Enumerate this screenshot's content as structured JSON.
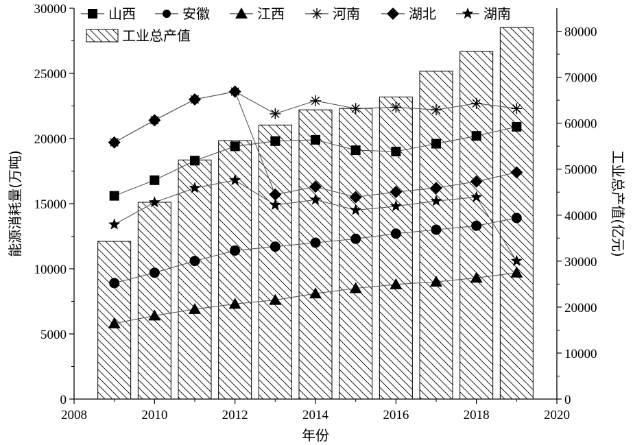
{
  "chart_data": {
    "type": "bar+line",
    "xlabel": "年份",
    "ylabel_left": "能源消耗量(万吨)",
    "ylabel_right": "工业总产值(亿元)",
    "xlim": [
      2008,
      2020
    ],
    "xticks": [
      "2008",
      "2010",
      "2012",
      "2014",
      "2016",
      "2018",
      "2020"
    ],
    "ylim_left": [
      0,
      30000
    ],
    "yticks_left": [
      "0",
      "5000",
      "10000",
      "15000",
      "20000",
      "25000",
      "30000"
    ],
    "ylim_right": [
      0,
      85000
    ],
    "yticks_right": [
      "0",
      "10000",
      "20000",
      "30000",
      "40000",
      "50000",
      "60000",
      "70000",
      "80000"
    ],
    "grid": false,
    "legend_position": "top",
    "years": [
      2009,
      2010,
      2011,
      2012,
      2013,
      2014,
      2015,
      2016,
      2017,
      2018,
      2019
    ],
    "bars": {
      "name": "工业总产值",
      "axis": "right",
      "values": [
        34300,
        42800,
        52000,
        56200,
        59600,
        62900,
        63200,
        65700,
        71300,
        75600,
        80800
      ]
    },
    "series": [
      {
        "name": "山西",
        "marker": "square",
        "values": [
          15600,
          16800,
          18300,
          19400,
          19800,
          19900,
          19100,
          19000,
          19600,
          20200,
          20900
        ]
      },
      {
        "name": "安徽",
        "marker": "circle",
        "values": [
          8900,
          9700,
          10600,
          11400,
          11700,
          12000,
          12300,
          12700,
          13000,
          13300,
          13900
        ]
      },
      {
        "name": "江西",
        "marker": "triangle",
        "values": [
          5800,
          6400,
          6900,
          7300,
          7600,
          8100,
          8500,
          8800,
          9000,
          9300,
          9700
        ]
      },
      {
        "name": "河南",
        "marker": "asterisk",
        "values": [
          19700,
          21400,
          23000,
          23600,
          21900,
          22900,
          22300,
          22400,
          22200,
          22700,
          22300
        ]
      },
      {
        "name": "湖北",
        "marker": "diamond",
        "values": [
          19700,
          21400,
          23000,
          23600,
          15700,
          16300,
          15500,
          15900,
          16200,
          16700,
          17400
        ]
      },
      {
        "name": "湖南",
        "marker": "star",
        "values": [
          13400,
          15100,
          16200,
          16800,
          14900,
          15300,
          14500,
          14800,
          15200,
          15500,
          10600
        ]
      }
    ]
  }
}
